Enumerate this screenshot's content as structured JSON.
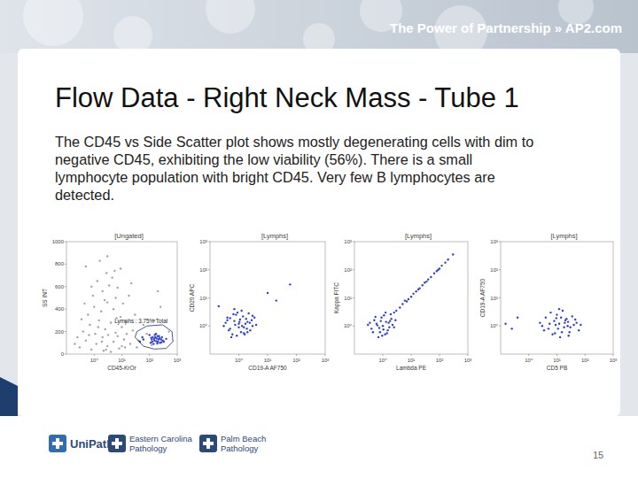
{
  "header": {
    "tagline": "The Power of Partnership » AP2.com"
  },
  "slide": {
    "title": "Flow Data - Right Neck Mass - Tube 1",
    "body_lines": [
      "The CD45 vs Side Scatter plot shows mostly degenerating cells with dim to",
      "negative CD45, exhibiting the low viability (56%). There is a small",
      "lymphocyte population with bright CD45. Very few B lymphocytes are",
      "detected."
    ],
    "page_number": "15"
  },
  "footer": {
    "logos": [
      {
        "lines": [
          "UniPath"
        ]
      },
      {
        "lines": [
          "Eastern Carolina",
          "Pathology"
        ]
      },
      {
        "lines": [
          "Palm Beach",
          "Pathology"
        ]
      }
    ]
  },
  "chart_data": [
    {
      "type": "scatter",
      "title": "[Ungated]",
      "x_label": "CD45-KrOr",
      "y_label": "SS INT",
      "log": "x",
      "xlim": [
        0.1,
        1000
      ],
      "ylim": [
        0,
        1000
      ],
      "xticks": [
        {
          "value": 1,
          "label": "10⁰"
        },
        {
          "value": 10,
          "label": "10¹"
        },
        {
          "value": 100,
          "label": "10²"
        },
        {
          "value": 1000,
          "label": "10³"
        }
      ],
      "yticks": [
        0,
        200,
        400,
        600,
        800,
        1000
      ],
      "series": [
        {
          "color": "#a3a3a3",
          "marker": "dot",
          "x": [
            0.3,
            0.5,
            0.8,
            1.2,
            2,
            3,
            5,
            8,
            12,
            0.4,
            0.7,
            1.5,
            2.5,
            4,
            6,
            10,
            15,
            20,
            0.6,
            1,
            1.8,
            3,
            5,
            9,
            14,
            0.9,
            2,
            3.5,
            6,
            11,
            1.3,
            2.8,
            4.5,
            7,
            0.5,
            1.6,
            3,
            9,
            25,
            30,
            40,
            60,
            18,
            0.25,
            0.35,
            1.1,
            2.2,
            4,
            7,
            13,
            0.45,
            0.8,
            2.4,
            5.5,
            35,
            80,
            150,
            200,
            0.2,
            1.9,
            3.2,
            6.5,
            1.4,
            10,
            2.7,
            0.65,
            120,
            500,
            250,
            22
          ],
          "values": [
            60,
            120,
            40,
            90,
            150,
            70,
            110,
            50,
            130,
            200,
            260,
            300,
            220,
            280,
            190,
            240,
            180,
            90,
            350,
            420,
            380,
            460,
            400,
            330,
            290,
            520,
            560,
            610,
            500,
            450,
            650,
            720,
            680,
            590,
            780,
            830,
            870,
            760,
            210,
            350,
            120,
            260,
            520,
            150,
            310,
            180,
            30,
            20,
            160,
            60,
            450,
            600,
            480,
            740,
            60,
            180,
            300,
            560,
            90,
            110,
            170,
            320,
            240,
            70,
            40,
            170,
            80,
            200,
            420,
            630
          ]
        },
        {
          "color": "#2f3fd0",
          "marker": "dot",
          "x": [
            45,
            60,
            110,
            130,
            150,
            180,
            200,
            220,
            260,
            300,
            100,
            140,
            170,
            240,
            120,
            160,
            190,
            210,
            280,
            330,
            55,
            125,
            155,
            230,
            270,
            145,
            175,
            195,
            115,
            400
          ],
          "values": [
            110,
            130,
            100,
            150,
            120,
            140,
            110,
            160,
            130,
            120,
            170,
            90,
            180,
            100,
            130,
            150,
            95,
            130,
            150,
            110,
            150,
            110,
            170,
            140,
            105,
            135,
            115,
            160,
            145,
            135
          ]
        }
      ],
      "gate": {
        "label": "Lymphs : 3.75% Total",
        "x": [
          30,
          60,
          150,
          400,
          700,
          650,
          300,
          80,
          35
        ],
        "y": [
          150,
          70,
          45,
          50,
          110,
          200,
          260,
          250,
          200
        ]
      }
    },
    {
      "type": "scatter",
      "title": "[Lymphs]",
      "x_label": "CD19-A AF750",
      "y_label": "CD20 APC",
      "log": true,
      "xlim": [
        0.1,
        1000
      ],
      "ylim": [
        0.1,
        1000
      ],
      "xticks": [
        {
          "value": 1,
          "label": "10⁰"
        },
        {
          "value": 10,
          "label": "10¹"
        },
        {
          "value": 100,
          "label": "10²"
        },
        {
          "value": 1000,
          "label": "10³"
        }
      ],
      "yticks": [
        {
          "value": 1,
          "label": "10⁰"
        },
        {
          "value": 10,
          "label": "10¹"
        },
        {
          "value": 100,
          "label": "10²"
        },
        {
          "value": 1000,
          "label": "10³"
        }
      ],
      "series": [
        {
          "color": "#2f3fd0",
          "marker": "dot",
          "x": [
            0.3,
            0.5,
            0.7,
            1,
            1.5,
            2,
            3,
            0.4,
            0.8,
            1.2,
            1.8,
            2.5,
            0.6,
            0.9,
            1.4,
            2.2,
            0.35,
            0.55,
            1.1,
            1.6,
            2.8,
            4,
            0.45,
            0.75,
            1.3,
            2,
            3.5,
            0.5,
            1,
            1.7,
            0.65,
            0.85,
            1.25,
            2.4,
            0.4,
            1.05,
            1.9,
            3,
            0.7,
            1.5,
            20,
            60,
            10,
            0.2
          ],
          "values": [
            1,
            0.8,
            1.5,
            1.2,
            0.9,
            1.4,
            1,
            2,
            2.5,
            0.6,
            1.8,
            0.7,
            0.5,
            3,
            2.2,
            2.8,
            1.3,
            0.4,
            1.7,
            0.5,
            1.6,
            1.1,
            0.7,
            1.1,
            1,
            0.6,
            2,
            1.9,
            0.9,
            1.2,
            2.6,
            0.45,
            3.5,
            1.3,
            1.6,
            1.4,
            0.8,
            2.3,
            4,
            0.55,
            8,
            30,
            15,
            5
          ]
        }
      ]
    },
    {
      "type": "scatter",
      "title": "[Lymphs]",
      "x_label": "Lambda PE",
      "y_label": "Kappa FITC",
      "log": true,
      "xlim": [
        0.1,
        1000
      ],
      "ylim": [
        0.1,
        1000
      ],
      "xticks": [
        {
          "value": 1,
          "label": "10⁰"
        },
        {
          "value": 10,
          "label": "10¹"
        },
        {
          "value": 100,
          "label": "10²"
        },
        {
          "value": 1000,
          "label": "10³"
        }
      ],
      "yticks": [
        {
          "value": 1,
          "label": "10⁰"
        },
        {
          "value": 10,
          "label": "10¹"
        },
        {
          "value": 100,
          "label": "10²"
        },
        {
          "value": 1000,
          "label": "10³"
        }
      ],
      "series": [
        {
          "color": "#2f3fd0",
          "marker": "dot",
          "x": [
            0.4,
            0.6,
            0.8,
            1,
            1.3,
            1.7,
            2.2,
            0.5,
            0.9,
            1.2,
            1.5,
            2,
            0.3,
            0.7,
            1.1,
            1.6,
            2.5,
            0.45,
            0.85,
            1.4,
            0.55,
            1.05,
            1.8,
            0.65,
            1.25,
            0.35,
            0.95,
            2.8,
            1.9,
            0.75,
            3,
            5,
            8,
            12,
            20,
            30,
            50,
            80,
            120,
            200,
            4,
            6,
            10,
            15,
            25,
            40,
            65,
            100,
            160,
            300,
            2.5,
            7,
            18,
            35,
            90
          ],
          "values": [
            0.8,
            1.2,
            0.6,
            1,
            1.4,
            0.9,
            1.1,
            1.6,
            2,
            0.5,
            0.7,
            1.8,
            1.1,
            0.4,
            2.4,
            1.3,
            0.9,
            0.6,
            1.5,
            0.55,
            2.1,
            0.75,
            1.5,
            1.05,
            3,
            1.3,
            0.45,
            1.6,
            2.6,
            0.85,
            3.5,
            6,
            9,
            14,
            22,
            35,
            55,
            90,
            140,
            230,
            4.5,
            8,
            11,
            17,
            28,
            45,
            75,
            110,
            180,
            350,
            3,
            7.5,
            20,
            38,
            100
          ]
        }
      ]
    },
    {
      "type": "scatter",
      "title": "[Lymphs]",
      "x_label": "CD5 PB",
      "y_label": "CD19-A AF750",
      "log": true,
      "xlim": [
        0.1,
        1000
      ],
      "ylim": [
        0.1,
        1000
      ],
      "xticks": [
        {
          "value": 1,
          "label": "10⁰"
        },
        {
          "value": 10,
          "label": "10¹"
        },
        {
          "value": 100,
          "label": "10²"
        },
        {
          "value": 1000,
          "label": "10³"
        }
      ],
      "yticks": [
        {
          "value": 1,
          "label": "10⁰"
        },
        {
          "value": 10,
          "label": "10¹"
        },
        {
          "value": 100,
          "label": "10²"
        },
        {
          "value": 1000,
          "label": "10³"
        }
      ],
      "series": [
        {
          "color": "#2f3fd0",
          "marker": "dot",
          "x": [
            3,
            5,
            8,
            12,
            18,
            25,
            40,
            60,
            4,
            7,
            10,
            15,
            22,
            30,
            50,
            6,
            9,
            13,
            20,
            35,
            2.5,
            11,
            16,
            28,
            45,
            5.5,
            8.5,
            14,
            24,
            70,
            3.5,
            12,
            19,
            9.5,
            26,
            0.15,
            0.25,
            0.4
          ],
          "values": [
            1,
            0.8,
            1.5,
            1.2,
            0.9,
            1.4,
            1.1,
            0.7,
            2,
            0.5,
            2.5,
            0.6,
            1.8,
            0.9,
            1.3,
            3,
            1.1,
            0.4,
            1.6,
            2.2,
            1.3,
            0.8,
            3.5,
            0.6,
            1.7,
            1.2,
            0.55,
            2,
            1,
            1.1,
            0.7,
            4,
            1.3,
            1.9,
            0.45,
            1.2,
            0.8,
            2
          ]
        }
      ]
    }
  ]
}
